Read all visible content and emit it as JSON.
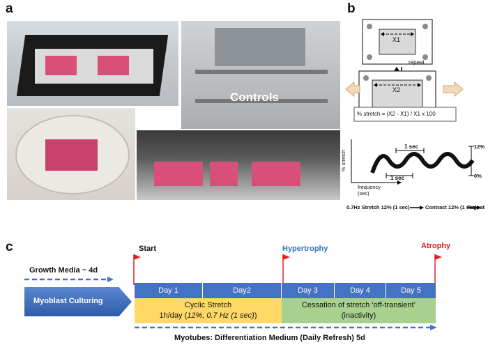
{
  "panels": {
    "a": "a",
    "b": "b",
    "c": "c"
  },
  "photo_a": {
    "overlay_text": "Controls"
  },
  "panel_b": {
    "well_top_label": "X1",
    "well_bottom_label": "X2",
    "repeat_label": "repeat",
    "formula": "% stretch = (X2 - X1) / X1 x 100",
    "wave_sec_top": "1 sec",
    "wave_sec_bottom": "1 sec",
    "y_axis_label": "% stretch",
    "x_axis_label_1": "frequency",
    "x_axis_label_2": "(sec)",
    "tick_12": "12%",
    "tick_0": "0%",
    "protocol_stretch": "0.7Hz Stretch 12% (1 sec)",
    "protocol_contract": "Contract 12% (1 sec)",
    "protocol_repeat": "Repeat"
  },
  "panel_c": {
    "growth_media": "Growth Media ~ 4d",
    "myoblast": "Myoblast Culturing",
    "start": "Start",
    "hypertrophy": "Hypertrophy",
    "atrophy": "Atrophy",
    "days": [
      "Day 1",
      "Day2",
      "Day 3",
      "Day 4",
      "Day 5"
    ],
    "stretch_line1": "Cyclic Stretch",
    "stretch_line2_a": "1h/day (",
    "stretch_line2_b": "12%, 0.7 Hz (1 sec)",
    "stretch_line2_c": ")",
    "cessation_line1": "Cessation of stretch ‘off-transient’",
    "cessation_line2": "(inactivity)",
    "myotubes": "Myotubes: Differentiation Medium (Daily Refresh) 5d",
    "colors": {
      "blue": "#4472c4",
      "yellow": "#ffd966",
      "green": "#a9d18e",
      "hypertrophy": "#2e75b6",
      "atrophy": "#e02020"
    }
  }
}
